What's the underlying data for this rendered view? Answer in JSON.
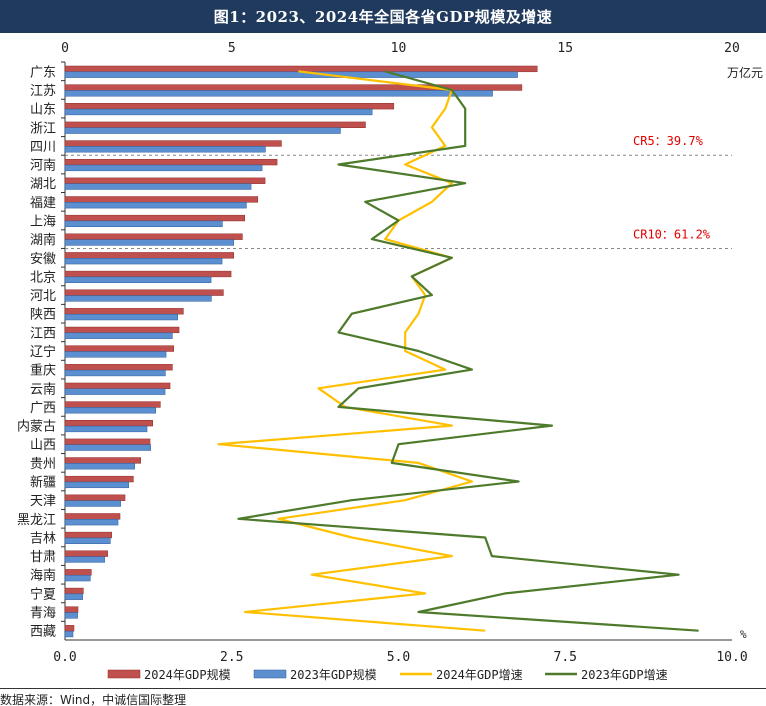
{
  "title": "图1：2023、2024年全国各省GDP规模及增速",
  "source": "数据来源：Wind，中诚信国际整理",
  "colors": {
    "title_bg": "#1f3a5c",
    "bar_2024": "#c0504d",
    "bar_2023": "#5b8fd0",
    "line_2024": "#ffc000",
    "line_2023": "#4e7a2b",
    "annotation": "#e00000"
  },
  "chart_data": {
    "type": "bar",
    "orientation": "horizontal",
    "categories": [
      "广东",
      "江苏",
      "山东",
      "浙江",
      "四川",
      "河南",
      "湖北",
      "福建",
      "上海",
      "湖南",
      "安徽",
      "北京",
      "河北",
      "陕西",
      "江西",
      "辽宁",
      "重庆",
      "云南",
      "广西",
      "内蒙古",
      "山西",
      "贵州",
      "新疆",
      "天津",
      "黑龙江",
      "吉林",
      "甘肃",
      "海南",
      "宁夏",
      "青海",
      "西藏"
    ],
    "top_axis": {
      "ticks": [
        "0",
        "5",
        "10",
        "15",
        "20"
      ],
      "range": [
        0,
        20
      ],
      "unit": "万亿元"
    },
    "bottom_axis": {
      "ticks": [
        "0.0",
        "2.5",
        "5.0",
        "7.5",
        "10.0"
      ],
      "range": [
        0,
        10
      ],
      "unit": "%"
    },
    "series": [
      {
        "name": "2024年GDP规模",
        "kind": "bar",
        "axis": "top",
        "values": [
          14.16,
          13.7,
          9.86,
          9.01,
          6.49,
          6.36,
          6.0,
          5.78,
          5.39,
          5.32,
          5.06,
          4.98,
          4.75,
          3.55,
          3.42,
          3.26,
          3.22,
          3.15,
          2.86,
          2.63,
          2.55,
          2.27,
          2.05,
          1.8,
          1.65,
          1.4,
          1.28,
          0.79,
          0.55,
          0.39,
          0.27
        ]
      },
      {
        "name": "2023年GDP规模",
        "kind": "bar",
        "axis": "top",
        "values": [
          13.57,
          12.82,
          9.21,
          8.26,
          6.01,
          5.91,
          5.58,
          5.44,
          4.72,
          5.06,
          4.71,
          4.38,
          4.39,
          3.38,
          3.22,
          3.03,
          3.01,
          3.0,
          2.72,
          2.46,
          2.57,
          2.09,
          1.91,
          1.67,
          1.59,
          1.36,
          1.19,
          0.76,
          0.53,
          0.38,
          0.24
        ]
      },
      {
        "name": "2024年GDP增速",
        "kind": "line",
        "axis": "bottom",
        "values": [
          3.5,
          5.8,
          5.7,
          5.5,
          5.7,
          5.1,
          5.8,
          5.5,
          5.0,
          4.8,
          5.8,
          5.2,
          5.4,
          5.3,
          5.1,
          5.1,
          5.7,
          3.8,
          4.2,
          5.8,
          2.3,
          5.3,
          6.1,
          5.1,
          3.2,
          4.3,
          5.8,
          3.7,
          5.4,
          2.7,
          6.3
        ]
      },
      {
        "name": "2023年GDP增速",
        "kind": "line",
        "axis": "bottom",
        "values": [
          4.8,
          5.8,
          6.0,
          6.0,
          6.0,
          4.1,
          6.0,
          4.5,
          5.0,
          4.6,
          5.8,
          5.2,
          5.5,
          4.3,
          4.1,
          5.3,
          6.1,
          4.4,
          4.1,
          7.3,
          5.0,
          4.9,
          6.8,
          4.3,
          2.6,
          6.3,
          6.4,
          9.2,
          6.6,
          5.3,
          9.5
        ]
      }
    ],
    "annotations": [
      {
        "text": "CR5：39.7%",
        "after_category": "四川"
      },
      {
        "text": "CR10：61.2%",
        "after_category": "湖南"
      }
    ],
    "legend_position": "bottom"
  }
}
